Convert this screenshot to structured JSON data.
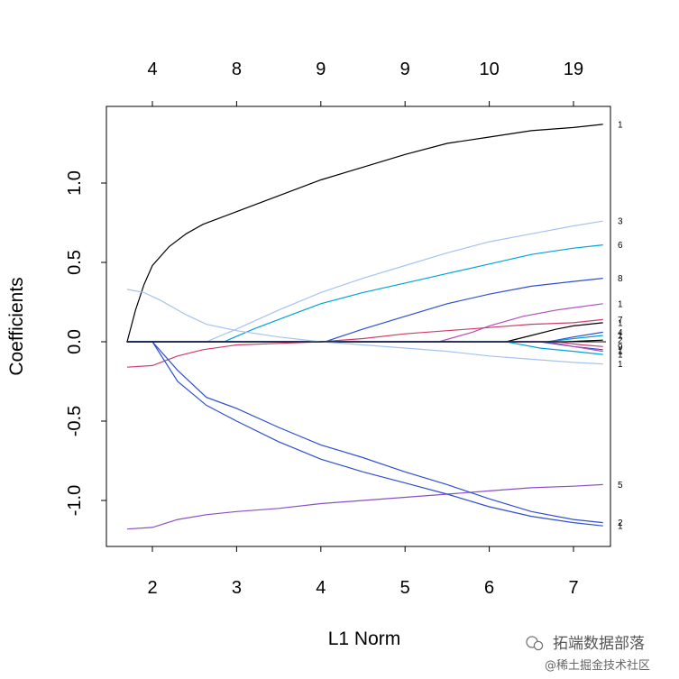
{
  "chart_data": {
    "type": "line",
    "xlabel": "L1 Norm",
    "ylabel": "Coefficients",
    "xlim": [
      1.68,
      7.4
    ],
    "ylim": [
      -1.28,
      1.48
    ],
    "x_ticks": [
      "2",
      "3",
      "4",
      "5",
      "6",
      "7"
    ],
    "y_ticks": [
      "-1.0",
      "-0.5",
      "0.0",
      "0.5",
      "1.0"
    ],
    "top_axis": {
      "positions": [
        2,
        3,
        4,
        5,
        6,
        7
      ],
      "labels": [
        "4",
        "8",
        "9",
        "9",
        "10",
        "19"
      ]
    },
    "grid": false,
    "series": [
      {
        "name": "1",
        "color": "#000000",
        "points": [
          [
            1.7,
            0.0
          ],
          [
            1.8,
            0.2
          ],
          [
            1.9,
            0.36
          ],
          [
            2.0,
            0.48
          ],
          [
            2.2,
            0.6
          ],
          [
            2.4,
            0.68
          ],
          [
            2.6,
            0.74
          ],
          [
            3.0,
            0.82
          ],
          [
            3.5,
            0.92
          ],
          [
            4.0,
            1.02
          ],
          [
            4.5,
            1.1
          ],
          [
            5.0,
            1.18
          ],
          [
            5.5,
            1.25
          ],
          [
            6.0,
            1.29
          ],
          [
            6.5,
            1.33
          ],
          [
            7.0,
            1.35
          ],
          [
            7.35,
            1.37
          ]
        ]
      },
      {
        "name": "3",
        "color": "#a6c3ef",
        "points": [
          [
            1.7,
            0.0
          ],
          [
            2.64,
            0.0
          ],
          [
            3.0,
            0.08
          ],
          [
            3.5,
            0.2
          ],
          [
            4.0,
            0.31
          ],
          [
            4.5,
            0.4
          ],
          [
            5.0,
            0.48
          ],
          [
            5.5,
            0.56
          ],
          [
            6.0,
            0.63
          ],
          [
            6.5,
            0.68
          ],
          [
            7.0,
            0.73
          ],
          [
            7.35,
            0.76
          ]
        ]
      },
      {
        "name": "6",
        "color": "#00a4d8",
        "points": [
          [
            1.7,
            0.0
          ],
          [
            2.85,
            0.0
          ],
          [
            3.2,
            0.08
          ],
          [
            3.6,
            0.16
          ],
          [
            4.0,
            0.24
          ],
          [
            4.5,
            0.31
          ],
          [
            5.0,
            0.37
          ],
          [
            5.5,
            0.43
          ],
          [
            6.0,
            0.49
          ],
          [
            6.5,
            0.55
          ],
          [
            7.0,
            0.59
          ],
          [
            7.35,
            0.61
          ]
        ]
      },
      {
        "name": "8",
        "color": "#2f4fd0",
        "points": [
          [
            1.7,
            0.0
          ],
          [
            4.05,
            0.0
          ],
          [
            4.5,
            0.08
          ],
          [
            5.0,
            0.16
          ],
          [
            5.5,
            0.24
          ],
          [
            6.0,
            0.3
          ],
          [
            6.5,
            0.35
          ],
          [
            7.0,
            0.38
          ],
          [
            7.35,
            0.4
          ]
        ]
      },
      {
        "name": "1",
        "color": "#b24fb8",
        "points": [
          [
            1.7,
            0.0
          ],
          [
            5.4,
            0.0
          ],
          [
            5.8,
            0.06
          ],
          [
            6.0,
            0.1
          ],
          [
            6.4,
            0.16
          ],
          [
            6.8,
            0.2
          ],
          [
            7.35,
            0.24
          ]
        ]
      },
      {
        "name": "7",
        "color": "#cf3d67",
        "points": [
          [
            1.7,
            -0.16
          ],
          [
            2.0,
            -0.15
          ],
          [
            2.3,
            -0.09
          ],
          [
            2.6,
            -0.05
          ],
          [
            3.0,
            -0.02
          ],
          [
            3.5,
            -0.01
          ],
          [
            4.0,
            0.0
          ],
          [
            4.5,
            0.02
          ],
          [
            5.0,
            0.05
          ],
          [
            5.5,
            0.07
          ],
          [
            6.0,
            0.09
          ],
          [
            6.5,
            0.11
          ],
          [
            7.0,
            0.12
          ],
          [
            7.35,
            0.14
          ]
        ]
      },
      {
        "name": "1",
        "color": "#000000",
        "points": [
          [
            1.7,
            0.0
          ],
          [
            6.2,
            0.0
          ],
          [
            6.5,
            0.04
          ],
          [
            6.8,
            0.08
          ],
          [
            7.0,
            0.1
          ],
          [
            7.35,
            0.12
          ]
        ]
      },
      {
        "name": "4",
        "color": "#2f4fd0",
        "points": [
          [
            1.7,
            0.0
          ],
          [
            6.7,
            0.0
          ],
          [
            7.0,
            0.03
          ],
          [
            7.35,
            0.06
          ]
        ]
      },
      {
        "name": "1",
        "color": "#00a4d8",
        "points": [
          [
            1.7,
            0.0
          ],
          [
            6.7,
            0.0
          ],
          [
            7.0,
            0.02
          ],
          [
            7.35,
            0.04
          ]
        ]
      },
      {
        "name": "2",
        "color": "#000000",
        "points": [
          [
            1.7,
            0.0
          ],
          [
            6.9,
            0.0
          ],
          [
            7.35,
            0.01
          ]
        ]
      },
      {
        "name": "9",
        "color": "#cf3d67",
        "points": [
          [
            1.7,
            0.0
          ],
          [
            6.8,
            0.0
          ],
          [
            7.1,
            -0.02
          ],
          [
            7.35,
            -0.03
          ]
        ]
      },
      {
        "name": "1",
        "color": "#2f4fd0",
        "points": [
          [
            1.7,
            0.0
          ],
          [
            6.6,
            0.0
          ],
          [
            7.0,
            -0.03
          ],
          [
            7.35,
            -0.05
          ]
        ]
      },
      {
        "name": "1",
        "color": "#b24fb8",
        "points": [
          [
            1.7,
            0.0
          ],
          [
            6.7,
            0.0
          ],
          [
            7.0,
            -0.03
          ],
          [
            7.35,
            -0.06
          ]
        ]
      },
      {
        "name": "1",
        "color": "#00a4d8",
        "points": [
          [
            1.7,
            0.0
          ],
          [
            6.2,
            0.0
          ],
          [
            6.6,
            -0.04
          ],
          [
            7.0,
            -0.06
          ],
          [
            7.35,
            -0.08
          ]
        ]
      },
      {
        "name": "1",
        "color": "#a6c3ef",
        "points": [
          [
            1.7,
            0.33
          ],
          [
            1.9,
            0.31
          ],
          [
            2.1,
            0.26
          ],
          [
            2.4,
            0.17
          ],
          [
            2.64,
            0.11
          ],
          [
            3.0,
            0.07
          ],
          [
            3.5,
            0.03
          ],
          [
            4.0,
            0.0
          ],
          [
            4.5,
            -0.02
          ],
          [
            5.0,
            -0.04
          ],
          [
            5.5,
            -0.06
          ],
          [
            6.0,
            -0.09
          ],
          [
            6.5,
            -0.11
          ],
          [
            7.0,
            -0.13
          ],
          [
            7.35,
            -0.14
          ]
        ]
      },
      {
        "name": "5",
        "color": "#8a4fc6",
        "points": [
          [
            1.7,
            -1.18
          ],
          [
            2.0,
            -1.17
          ],
          [
            2.3,
            -1.12
          ],
          [
            2.64,
            -1.09
          ],
          [
            3.0,
            -1.07
          ],
          [
            3.5,
            -1.05
          ],
          [
            4.0,
            -1.02
          ],
          [
            4.5,
            -1.0
          ],
          [
            5.0,
            -0.98
          ],
          [
            5.5,
            -0.96
          ],
          [
            6.0,
            -0.94
          ],
          [
            6.5,
            -0.92
          ],
          [
            7.0,
            -0.91
          ],
          [
            7.35,
            -0.9
          ]
        ]
      },
      {
        "name": "2",
        "color": "#2f4fd0",
        "points": [
          [
            1.7,
            0.0
          ],
          [
            2.0,
            0.0
          ],
          [
            2.3,
            -0.18
          ],
          [
            2.64,
            -0.35
          ],
          [
            3.0,
            -0.42
          ],
          [
            3.5,
            -0.54
          ],
          [
            4.0,
            -0.65
          ],
          [
            4.5,
            -0.73
          ],
          [
            5.0,
            -0.82
          ],
          [
            5.5,
            -0.9
          ],
          [
            6.0,
            -0.99
          ],
          [
            6.5,
            -1.07
          ],
          [
            7.0,
            -1.12
          ],
          [
            7.35,
            -1.14
          ]
        ]
      },
      {
        "name": "1",
        "color": "#2f4fd0",
        "points": [
          [
            1.7,
            0.0
          ],
          [
            2.0,
            0.0
          ],
          [
            2.3,
            -0.25
          ],
          [
            2.64,
            -0.4
          ],
          [
            3.0,
            -0.5
          ],
          [
            3.5,
            -0.63
          ],
          [
            4.0,
            -0.74
          ],
          [
            4.5,
            -0.82
          ],
          [
            5.0,
            -0.89
          ],
          [
            5.5,
            -0.96
          ],
          [
            6.0,
            -1.04
          ],
          [
            6.5,
            -1.1
          ],
          [
            7.0,
            -1.14
          ],
          [
            7.35,
            -1.16
          ]
        ]
      }
    ],
    "end_labels": [
      {
        "text": "1",
        "y": 1.37
      },
      {
        "text": "3",
        "y": 0.76
      },
      {
        "text": "6",
        "y": 0.61
      },
      {
        "text": "8",
        "y": 0.4
      },
      {
        "text": "1",
        "y": 0.24
      },
      {
        "text": "7",
        "y": 0.14
      },
      {
        "text": "1",
        "y": 0.12
      },
      {
        "text": "4",
        "y": 0.06
      },
      {
        "text": "1",
        "y": 0.04
      },
      {
        "text": "2",
        "y": 0.01
      },
      {
        "text": "9",
        "y": -0.03
      },
      {
        "text": "1",
        "y": -0.05
      },
      {
        "text": "1",
        "y": -0.06
      },
      {
        "text": "1",
        "y": -0.08
      },
      {
        "text": "1",
        "y": -0.14
      },
      {
        "text": "5",
        "y": -0.9
      },
      {
        "text": "2",
        "y": -1.14
      },
      {
        "text": "1",
        "y": -1.16
      }
    ]
  },
  "watermark": {
    "line1": "拓端数据部落",
    "line2": "@稀土掘金技术社区"
  }
}
